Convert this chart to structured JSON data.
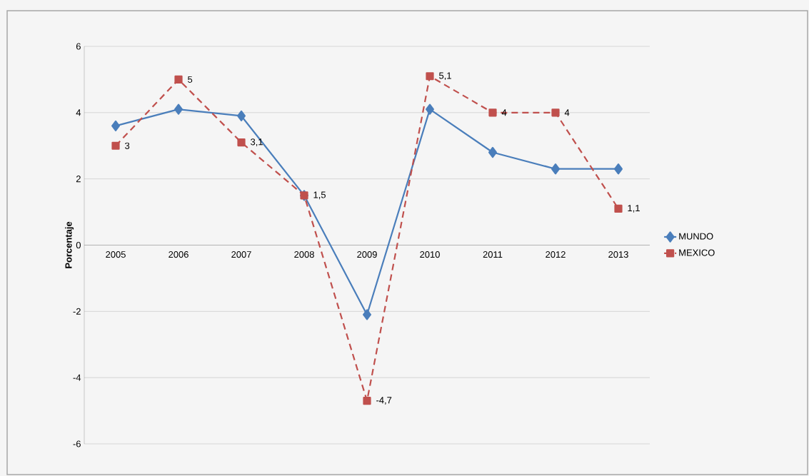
{
  "chart_data": {
    "type": "line",
    "ylabel": "Porcentaje",
    "categories": [
      "2005",
      "2006",
      "2007",
      "2008",
      "2009",
      "2010",
      "2011",
      "2012",
      "2013"
    ],
    "series": [
      {
        "name": "MUNDO",
        "color": "#4a7ebb",
        "marker": "diamond",
        "line_style": "solid",
        "values": [
          3.6,
          4.1,
          3.9,
          1.5,
          -2.1,
          4.1,
          2.8,
          2.3,
          2.3
        ]
      },
      {
        "name": "MEXICO",
        "color": "#c0504d",
        "marker": "square",
        "line_style": "dashed",
        "values": [
          3,
          5,
          3.1,
          1.5,
          -4.7,
          5.1,
          4,
          4,
          1.1
        ],
        "value_labels": [
          "3",
          "5",
          "3,1",
          "1,5",
          "-4,7",
          "5,1",
          "4",
          "4",
          "1,1"
        ]
      }
    ],
    "ylim": [
      -6,
      6
    ],
    "yticks": [
      -6,
      -4,
      -2,
      0,
      2,
      4,
      6
    ],
    "grid": "y",
    "legend": "right"
  }
}
